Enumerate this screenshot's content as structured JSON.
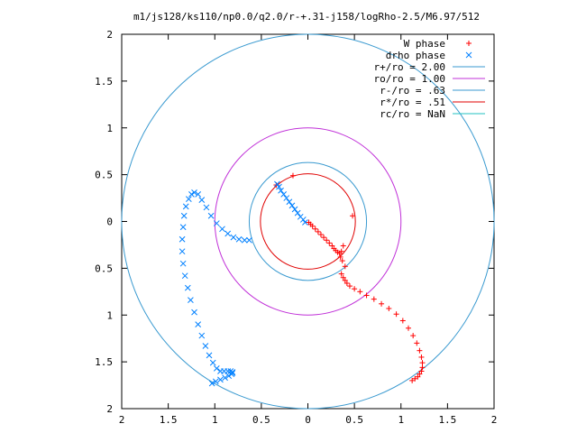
{
  "chart_data": {
    "type": "scatter",
    "title": "m1/js128/ks110/np0.0/q2.0/r-+.31-j158/logRho-2.5/M6.97/512",
    "xlim": [
      -2,
      2
    ],
    "ylim": [
      -2,
      2
    ],
    "x_ticks": [
      -2,
      -1.5,
      -1,
      -0.5,
      0,
      0.5,
      1,
      1.5,
      2
    ],
    "y_ticks": [
      -2,
      -1.5,
      -1,
      -0.5,
      0,
      0.5,
      1,
      1.5,
      2
    ],
    "x_tick_labels": [
      "2",
      "1.5",
      "1",
      "0.5",
      "0",
      "0.5",
      "1",
      "1.5",
      "2"
    ],
    "y_tick_labels": [
      "2",
      "1.5",
      "1",
      "0.5",
      "0",
      "0.5",
      "1",
      "1.5",
      "2"
    ],
    "grid": false,
    "legend_position": "top-right",
    "legend": [
      {
        "label": "W phase",
        "symbol": "+",
        "color": "#ff0000"
      },
      {
        "label": "drho phase",
        "symbol": "x",
        "color": "#0080ff"
      },
      {
        "label": "r+/ro = 2.00",
        "symbol": "line",
        "color": "#3a9ad0"
      },
      {
        "label": "ro/ro = 1.00",
        "symbol": "line",
        "color": "#c030d8"
      },
      {
        "label": "r-/ro = .63",
        "symbol": "line",
        "color": "#3a9ad0"
      },
      {
        "label": "r*/ro = .51",
        "symbol": "line",
        "color": "#e00000"
      },
      {
        "label": "rc/ro = NaN",
        "symbol": "line",
        "color": "#20c0c0"
      }
    ],
    "circles": [
      {
        "radius": 2.0,
        "color": "#3a9ad0"
      },
      {
        "radius": 1.0,
        "color": "#c030d8"
      },
      {
        "radius": 0.63,
        "color": "#3a9ad0"
      },
      {
        "radius": 0.51,
        "color": "#e00000"
      }
    ],
    "series": [
      {
        "name": "W phase",
        "marker": "+",
        "color": "#ff0000",
        "x": [
          -0.34,
          -0.16,
          0.48,
          0.01,
          0.03,
          0.05,
          0.08,
          0.11,
          0.14,
          0.17,
          0.2,
          0.23,
          0.26,
          0.28,
          0.3,
          0.32,
          0.34,
          0.36,
          0.38,
          0.35,
          0.37,
          0.4,
          0.36,
          0.38,
          0.4,
          0.42,
          0.45,
          0.5,
          0.56,
          0.63,
          0.71,
          0.79,
          0.87,
          0.95,
          1.02,
          1.08,
          1.13,
          1.17,
          1.2,
          1.22,
          1.23,
          1.23,
          1.22,
          1.2,
          1.18,
          1.15,
          1.12
        ],
        "y": [
          0.39,
          0.49,
          0.06,
          -0.01,
          -0.03,
          -0.05,
          -0.08,
          -0.11,
          -0.14,
          -0.17,
          -0.2,
          -0.23,
          -0.26,
          -0.29,
          -0.31,
          -0.33,
          -0.34,
          -0.32,
          -0.26,
          -0.38,
          -0.42,
          -0.48,
          -0.56,
          -0.6,
          -0.63,
          -0.66,
          -0.69,
          -0.72,
          -0.75,
          -0.79,
          -0.83,
          -0.88,
          -0.93,
          -0.99,
          -1.06,
          -1.14,
          -1.22,
          -1.3,
          -1.38,
          -1.45,
          -1.51,
          -1.56,
          -1.6,
          -1.63,
          -1.66,
          -1.68,
          -1.7
        ]
      },
      {
        "name": "drho phase",
        "marker": "x",
        "color": "#0080ff",
        "x": [
          -0.33,
          -0.31,
          -0.29,
          -0.26,
          -0.23,
          -0.2,
          -0.17,
          -0.14,
          -0.11,
          -0.08,
          -0.05,
          -0.03,
          -0.63,
          -0.68,
          -0.74,
          -0.8,
          -0.86,
          -0.92,
          -0.98,
          -1.04,
          -1.09,
          -1.14,
          -1.18,
          -1.22,
          -1.25,
          -1.28,
          -1.31,
          -1.33,
          -1.34,
          -1.35,
          -1.35,
          -1.34,
          -1.32,
          -1.29,
          -1.26,
          -1.22,
          -1.18,
          -1.14,
          -1.1,
          -1.06,
          -1.02,
          -0.98,
          -0.94,
          -0.9,
          -0.86,
          -0.83,
          -0.81,
          -0.81,
          -0.82,
          -0.85,
          -0.89,
          -0.94,
          -0.99,
          -1.03
        ],
        "y": [
          0.4,
          0.37,
          0.33,
          0.29,
          0.25,
          0.21,
          0.17,
          0.13,
          0.09,
          0.05,
          0.02,
          -0.01,
          -0.2,
          -0.2,
          -0.19,
          -0.17,
          -0.13,
          -0.08,
          -0.02,
          0.06,
          0.15,
          0.23,
          0.29,
          0.31,
          0.29,
          0.24,
          0.16,
          0.06,
          -0.06,
          -0.19,
          -0.32,
          -0.45,
          -0.58,
          -0.71,
          -0.84,
          -0.97,
          -1.1,
          -1.22,
          -1.33,
          -1.43,
          -1.51,
          -1.57,
          -1.6,
          -1.6,
          -1.6,
          -1.6,
          -1.61,
          -1.62,
          -1.63,
          -1.65,
          -1.67,
          -1.69,
          -1.71,
          -1.73
        ]
      }
    ]
  }
}
